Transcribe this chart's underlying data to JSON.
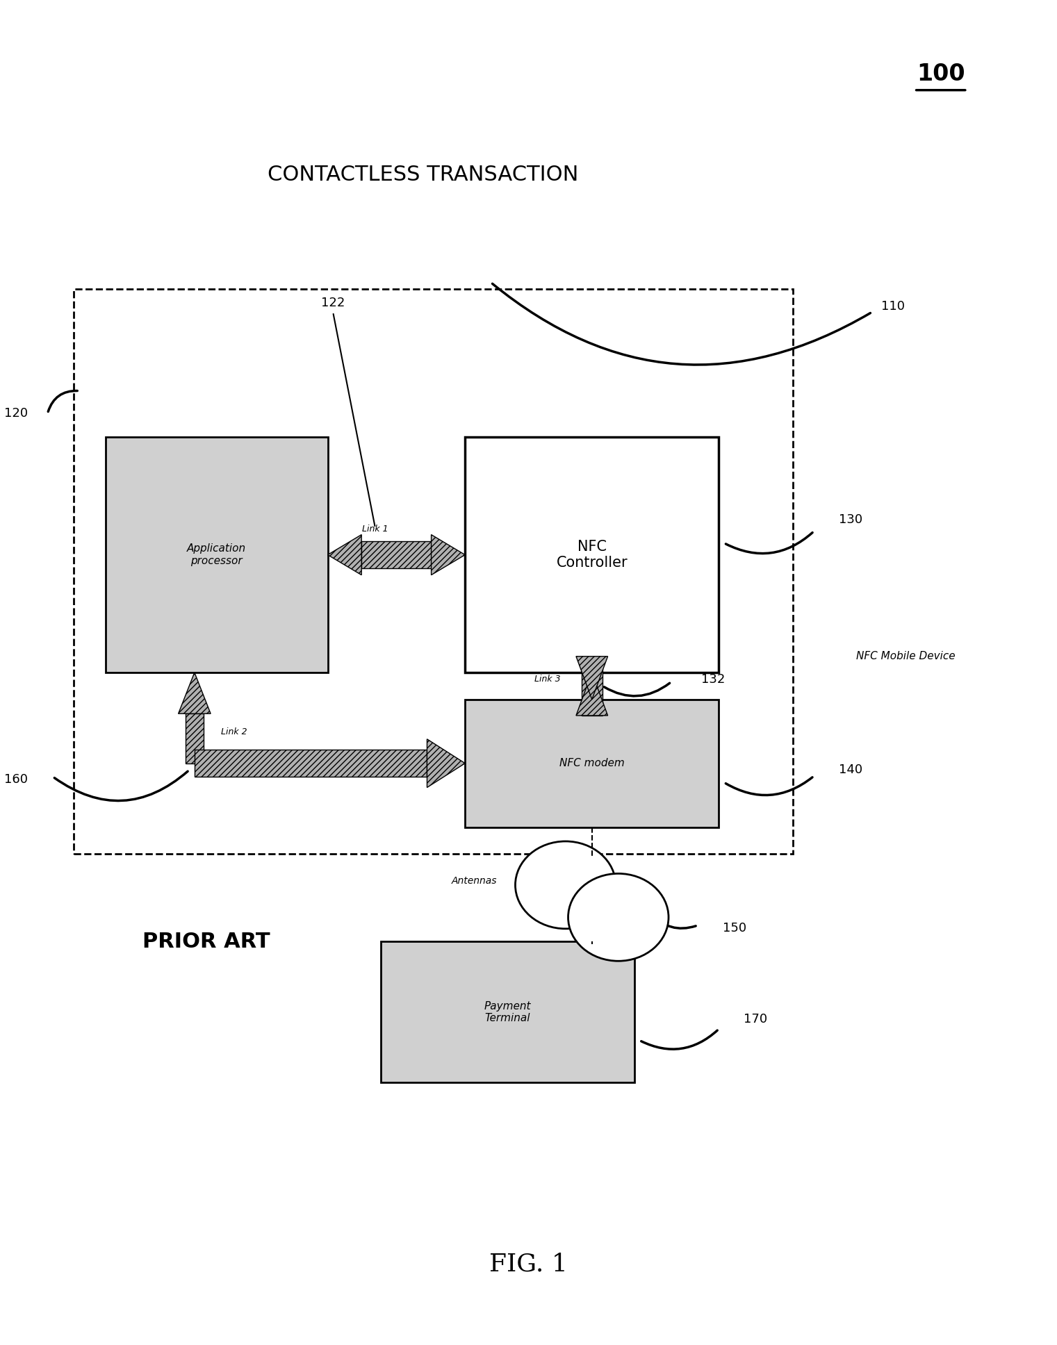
{
  "bg_color": "#ffffff",
  "title": "CONTACTLESS TRANSACTION",
  "fig_label": "FIG. 1",
  "ref_100": "100",
  "prior_art": "PRIOR ART",
  "nfc_mobile_device_label": "NFC Mobile Device",
  "antennas_label": "Antennas",
  "box_colors": {
    "dot": "#d0d0d0",
    "white": "#ffffff",
    "outer_edge": "#000000"
  }
}
